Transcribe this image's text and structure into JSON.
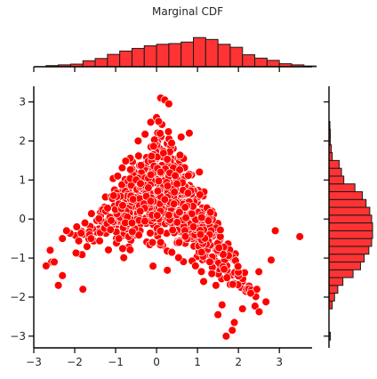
{
  "chart_data": {
    "type": "scatter",
    "title": "Marginal CDF",
    "xlabel": "",
    "ylabel": "",
    "xlim": [
      -3.0,
      3.8
    ],
    "ylim": [
      -3.3,
      3.4
    ],
    "x_ticks": [
      -3,
      -2,
      -1,
      0,
      1,
      2,
      3
    ],
    "y_ticks": [
      -3,
      -2,
      -1,
      0,
      1,
      2,
      3
    ],
    "grid": false,
    "colors": {
      "point_fill": "#ff0000",
      "point_edge": "#ffffff",
      "bar_fill": "#ff3333",
      "bar_edge": "#1a1a1a"
    },
    "x_hist": {
      "bin_start": -2.7,
      "bin_width": 0.3,
      "heights": [
        0.03,
        0.05,
        0.07,
        0.16,
        0.22,
        0.33,
        0.42,
        0.49,
        0.56,
        0.6,
        0.62,
        0.66,
        0.78,
        0.73,
        0.6,
        0.52,
        0.32,
        0.23,
        0.17,
        0.08,
        0.05,
        0.02
      ]
    },
    "y_hist": {
      "bin_start": -3.1,
      "bin_width": 0.2,
      "heights": [
        0.015,
        0.0,
        0.0,
        0.0,
        0.035,
        0.06,
        0.095,
        0.15,
        0.26,
        0.34,
        0.38,
        0.43,
        0.46,
        0.47,
        0.47,
        0.46,
        0.44,
        0.4,
        0.36,
        0.28,
        0.16,
        0.135,
        0.11,
        0.035,
        0.025,
        0.015,
        0.015,
        0.01,
        0.0,
        0.0,
        0.0,
        0.0
      ]
    },
    "points": [
      [
        3.5,
        -0.45
      ],
      [
        2.9,
        -0.3
      ],
      [
        2.8,
        -1.05
      ],
      [
        2.5,
        -1.35
      ],
      [
        2.45,
        -1.8
      ],
      [
        2.3,
        -1.9
      ],
      [
        2.1,
        -2.3
      ],
      [
        1.9,
        -2.65
      ],
      [
        1.85,
        -2.85
      ],
      [
        1.7,
        -3.0
      ],
      [
        1.6,
        -2.2
      ],
      [
        1.5,
        -2.45
      ],
      [
        1.45,
        -1.7
      ],
      [
        0.1,
        3.1
      ],
      [
        0.2,
        3.05
      ],
      [
        0.3,
        2.95
      ],
      [
        0.0,
        2.6
      ],
      [
        0.05,
        2.5
      ],
      [
        -0.45,
        2.0
      ],
      [
        -0.95,
        1.1
      ],
      [
        -1.05,
        0.6
      ],
      [
        -1.8,
        -1.8
      ],
      [
        -2.3,
        -1.45
      ],
      [
        -2.4,
        -1.7
      ],
      [
        -2.5,
        -1.1
      ],
      [
        -2.7,
        -1.2
      ],
      [
        -2.6,
        -0.8
      ],
      [
        -2.3,
        -0.5
      ],
      [
        -2.2,
        -0.3
      ],
      [
        -1.95,
        -0.2
      ],
      [
        -1.75,
        -0.1
      ],
      [
        -1.6,
        -0.5
      ],
      [
        0.8,
        2.2
      ],
      [
        0.6,
        2.1
      ],
      [
        -0.1,
        -0.6
      ],
      [
        0.1,
        -0.6
      ],
      [
        0.55,
        -0.6
      ],
      [
        0.9,
        -0.2
      ],
      [
        1.1,
        -0.85
      ],
      [
        1.35,
        -1.4
      ],
      [
        1.15,
        -1.6
      ],
      [
        0.95,
        -1.2
      ],
      [
        0.3,
        0.1
      ],
      [
        0.2,
        0.5
      ],
      [
        -0.2,
        0.8
      ],
      [
        -0.4,
        0.2
      ],
      [
        0.5,
        0.9
      ],
      [
        0.7,
        0.3
      ],
      [
        0.1,
        1.2
      ],
      [
        -0.6,
        -0.1
      ]
    ]
  }
}
